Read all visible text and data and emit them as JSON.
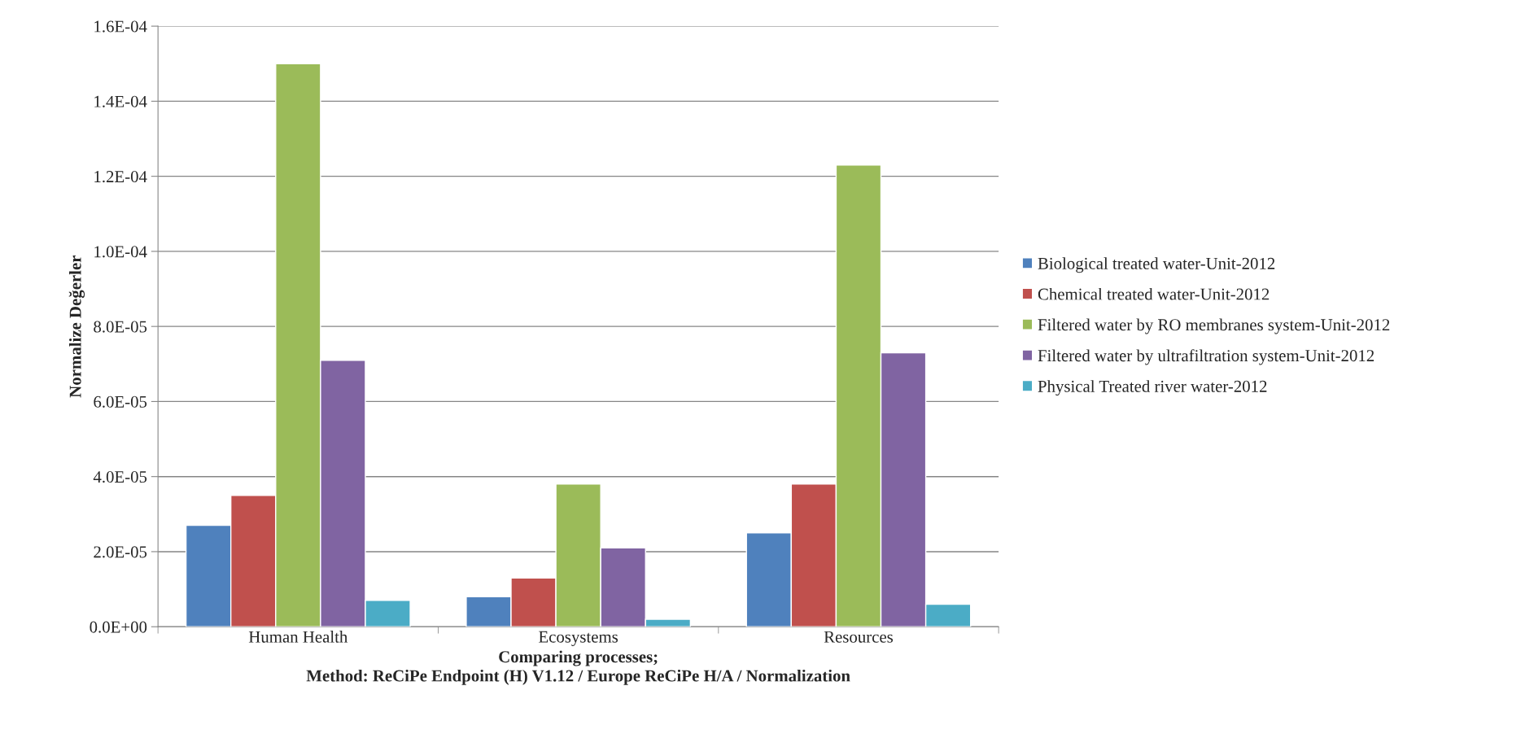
{
  "chart_data": {
    "type": "bar",
    "categories": [
      "Human Health",
      "Ecosystems",
      "Resources"
    ],
    "series": [
      {
        "name": "Biological treated water-Unit-2012",
        "color": "#4f81bd",
        "values": [
          2.7e-05,
          8e-06,
          2.5e-05
        ]
      },
      {
        "name": "Chemical treated water-Unit-2012",
        "color": "#c0504d",
        "values": [
          3.5e-05,
          1.3e-05,
          3.8e-05
        ]
      },
      {
        "name": "Filtered water by RO membranes system-Unit-2012",
        "color": "#9bbb59",
        "values": [
          0.00015,
          3.8e-05,
          0.000123
        ]
      },
      {
        "name": "Filtered water by ultrafiltration system-Unit-2012",
        "color": "#8064a2",
        "values": [
          7.1e-05,
          2.1e-05,
          7.3e-05
        ]
      },
      {
        "name": "Physical Treated river water-2012",
        "color": "#4bacc6",
        "values": [
          7e-06,
          2e-06,
          6e-06
        ]
      }
    ],
    "xlabel": "Comparing processes;\nMethod: ReCiPe Endpoint (H) V1.12 / Europe ReCiPe H/A / Normalization",
    "ylabel": "Normalize Değerler",
    "ylim": [
      0,
      0.00016
    ],
    "yticks": [
      {
        "value": 0,
        "label": "0.0E+00"
      },
      {
        "value": 2e-05,
        "label": "2.0E-05"
      },
      {
        "value": 4e-05,
        "label": "4.0E-05"
      },
      {
        "value": 6e-05,
        "label": "6.0E-05"
      },
      {
        "value": 8e-05,
        "label": "8.0E-05"
      },
      {
        "value": 0.0001,
        "label": "1.0E-04"
      },
      {
        "value": 0.00012,
        "label": "1.2E-04"
      },
      {
        "value": 0.00014,
        "label": "1.4E-04"
      },
      {
        "value": 0.00016,
        "label": "1.6E-04"
      }
    ],
    "grid": "y",
    "legend": "right"
  }
}
